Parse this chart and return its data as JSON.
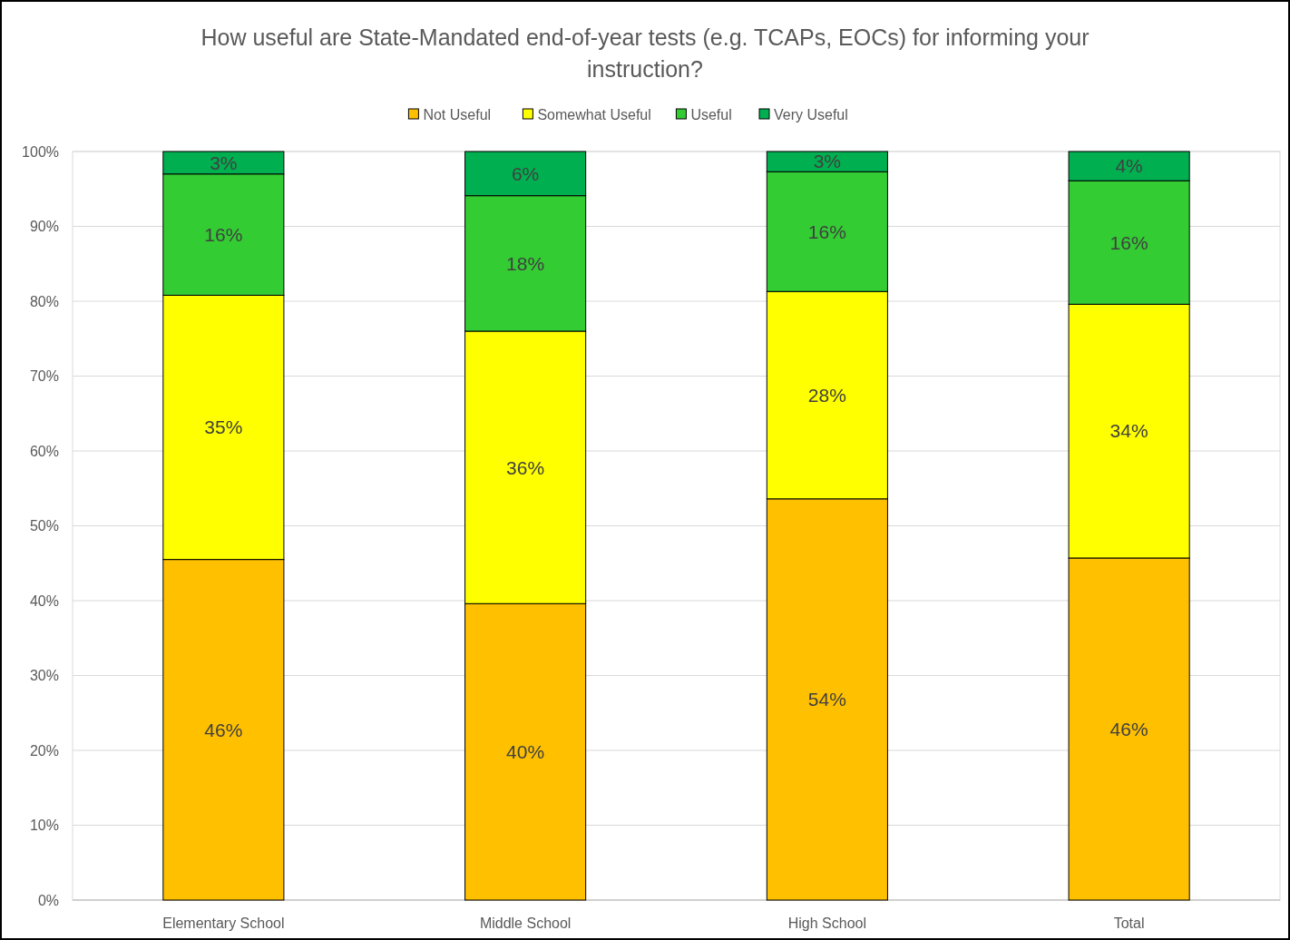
{
  "chart_data": {
    "type": "bar",
    "stacked": true,
    "title": "How useful are State-Mandated end-of-year tests (e.g. TCAPs, EOCs) for informing your instruction?",
    "categories": [
      "Elementary School",
      "Middle School",
      "High School",
      "Total"
    ],
    "series": [
      {
        "name": "Not Useful",
        "color": "#ffc000",
        "values": [
          45.5,
          39.6,
          53.6,
          45.7
        ],
        "value_labels": [
          "46%",
          "40%",
          "54%",
          "46%"
        ]
      },
      {
        "name": "Somewhat Useful",
        "color": "#ffff00",
        "values": [
          35.3,
          36.4,
          27.7,
          33.9
        ],
        "value_labels": [
          "35%",
          "36%",
          "28%",
          "34%"
        ]
      },
      {
        "name": "Useful",
        "color": "#33cc33",
        "values": [
          16.2,
          18.1,
          16.0,
          16.5
        ],
        "value_labels": [
          "16%",
          "18%",
          "16%",
          "16%"
        ]
      },
      {
        "name": "Very Useful",
        "color": "#00b050",
        "values": [
          3.0,
          5.9,
          2.7,
          3.9
        ],
        "value_labels": [
          "3%",
          "6%",
          "3%",
          "4%"
        ]
      }
    ],
    "ylim": [
      0,
      100
    ],
    "yticks": [
      {
        "value": 0,
        "label": "0%"
      },
      {
        "value": 10,
        "label": "10%"
      },
      {
        "value": 20,
        "label": "20%"
      },
      {
        "value": 30,
        "label": "30%"
      },
      {
        "value": 40,
        "label": "40%"
      },
      {
        "value": 50,
        "label": "50%"
      },
      {
        "value": 60,
        "label": "60%"
      },
      {
        "value": 70,
        "label": "70%"
      },
      {
        "value": 80,
        "label": "80%"
      },
      {
        "value": 90,
        "label": "90%"
      },
      {
        "value": 100,
        "label": "100%"
      }
    ],
    "grid": "y",
    "legend": "top"
  }
}
